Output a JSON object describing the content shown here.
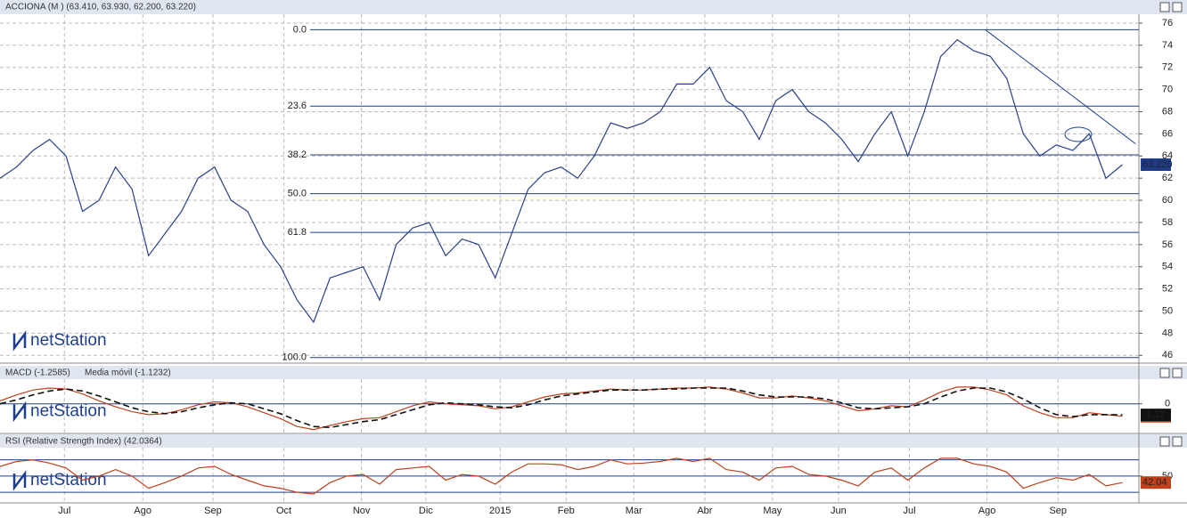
{
  "chart_data": [
    {
      "type": "line",
      "title": "ACCIONA (M ) (63.410, 63.930, 62.200, 63.220)",
      "watermark": "netStation",
      "x": [
        0,
        1,
        2,
        3,
        4,
        5,
        6,
        7,
        8,
        9,
        10,
        11,
        12,
        13,
        14,
        15,
        16,
        17,
        18,
        19,
        20,
        21,
        22,
        23,
        24,
        25,
        26,
        27,
        28,
        29,
        30,
        31,
        32,
        33,
        34,
        35,
        36,
        37,
        38,
        39,
        40,
        41,
        42,
        43,
        44,
        45,
        46,
        47,
        48,
        49,
        50,
        51,
        52,
        53,
        54,
        55,
        56,
        57,
        58,
        59,
        60,
        61,
        62,
        63,
        64,
        65,
        66,
        67,
        68
      ],
      "series": [
        {
          "name": "ACCIONA",
          "color": "#2a3f8f",
          "values": [
            62,
            63,
            64.5,
            65.5,
            64,
            59,
            60,
            63,
            61,
            55,
            57,
            59,
            62,
            63,
            60,
            59,
            56,
            54,
            51,
            49,
            53,
            53.5,
            54,
            51,
            56,
            57.5,
            58,
            55,
            56.5,
            56,
            53,
            57,
            61,
            62.5,
            63,
            62,
            64,
            67,
            66.5,
            67,
            68,
            70.5,
            70.5,
            72,
            69,
            68,
            65.5,
            69,
            70,
            68,
            67,
            65.5,
            63.5,
            66,
            68,
            64,
            68,
            73,
            74.5,
            73.5,
            73,
            71,
            66,
            64,
            65,
            64.5,
            66,
            62,
            63.22
          ]
        }
      ],
      "last_value_label": "63.220",
      "xlim": [
        0,
        69
      ],
      "ylim": [
        45.3,
        76.8
      ],
      "yticks": [
        46,
        48,
        50,
        52,
        54,
        56,
        58,
        60,
        62,
        64,
        66,
        68,
        70,
        72,
        74,
        76
      ],
      "grid": true,
      "fib_levels": [
        {
          "label": "0.0",
          "price": 75.4
        },
        {
          "label": "23.6",
          "price": 68.5
        },
        {
          "label": "38.2",
          "price": 64.1
        },
        {
          "label": "50.0",
          "price": 60.6
        },
        {
          "label": "61.8",
          "price": 57.1
        },
        {
          "label": "100.0",
          "price": 45.8
        }
      ],
      "trendline": {
        "x": [
          59.7,
          68.8
        ],
        "y": [
          75.4,
          65.1
        ]
      }
    },
    {
      "type": "line",
      "watermark": "netStation",
      "x": [
        0,
        1,
        2,
        3,
        4,
        5,
        6,
        7,
        8,
        9,
        10,
        11,
        12,
        13,
        14,
        15,
        16,
        17,
        18,
        19,
        20,
        21,
        22,
        23,
        24,
        25,
        26,
        27,
        28,
        29,
        30,
        31,
        32,
        33,
        34,
        35,
        36,
        37,
        38,
        39,
        40,
        41,
        42,
        43,
        44,
        45,
        46,
        47,
        48,
        49,
        50,
        51,
        52,
        53,
        54,
        55,
        56,
        57,
        58,
        59,
        60,
        61,
        62,
        63,
        64,
        65,
        66,
        67,
        68
      ],
      "series": [
        {
          "name": "MACD (-1.2585)",
          "color": "#c0401c",
          "values": [
            0.3,
            0.9,
            1.4,
            1.6,
            1.5,
            1.0,
            0.3,
            -0.3,
            -0.8,
            -1.1,
            -1.0,
            -0.6,
            -0.1,
            0.2,
            0.1,
            -0.3,
            -0.9,
            -1.5,
            -2.3,
            -2.6,
            -2.2,
            -1.8,
            -1.5,
            -1.4,
            -0.8,
            -0.2,
            0.2,
            0.0,
            -0.1,
            -0.2,
            -0.5,
            -0.3,
            0.2,
            0.7,
            1.0,
            1.1,
            1.3,
            1.5,
            1.4,
            1.4,
            1.5,
            1.6,
            1.6,
            1.7,
            1.5,
            1.1,
            0.6,
            0.6,
            0.8,
            0.6,
            0.3,
            -0.2,
            -0.7,
            -0.5,
            -0.2,
            -0.3,
            0.4,
            1.2,
            1.7,
            1.7,
            1.4,
            0.9,
            -0.2,
            -0.9,
            -1.4,
            -1.4,
            -0.9,
            -1.1,
            -1.26
          ]
        },
        {
          "name": "Media móvil (-1.1232)",
          "color": "#111111",
          "dashed": true,
          "values": [
            0.0,
            0.4,
            0.9,
            1.3,
            1.5,
            1.3,
            0.8,
            0.2,
            -0.4,
            -0.8,
            -1.0,
            -0.8,
            -0.4,
            -0.1,
            0.1,
            0.0,
            -0.5,
            -1.0,
            -1.7,
            -2.3,
            -2.4,
            -2.1,
            -1.8,
            -1.6,
            -1.1,
            -0.6,
            -0.1,
            0.1,
            0.0,
            -0.1,
            -0.3,
            -0.4,
            -0.1,
            0.4,
            0.8,
            1.0,
            1.2,
            1.4,
            1.4,
            1.4,
            1.5,
            1.5,
            1.6,
            1.6,
            1.6,
            1.3,
            0.9,
            0.7,
            0.7,
            0.7,
            0.5,
            0.1,
            -0.4,
            -0.5,
            -0.4,
            -0.3,
            0.0,
            0.7,
            1.3,
            1.6,
            1.6,
            1.2,
            0.5,
            -0.4,
            -1.1,
            -1.3,
            -1.1,
            -1.1,
            -1.12
          ]
        }
      ],
      "xlim": [
        0,
        69
      ],
      "ylim": [
        -3,
        2.5
      ],
      "yticks": [
        0
      ]
    },
    {
      "type": "line",
      "title": "RSI (Relative Strength Index) (42.0364)",
      "watermark": "netStation",
      "x": [
        0,
        1,
        2,
        3,
        4,
        5,
        6,
        7,
        8,
        9,
        10,
        11,
        12,
        13,
        14,
        15,
        16,
        17,
        18,
        19,
        20,
        21,
        22,
        23,
        24,
        25,
        26,
        27,
        28,
        29,
        30,
        31,
        32,
        33,
        34,
        35,
        36,
        37,
        38,
        39,
        40,
        41,
        42,
        43,
        44,
        45,
        46,
        47,
        48,
        49,
        50,
        51,
        52,
        53,
        54,
        55,
        56,
        57,
        58,
        59,
        60,
        61,
        62,
        63,
        64,
        65,
        66,
        67,
        68
      ],
      "series": [
        {
          "name": "RSI",
          "color": "#c0401c",
          "values": [
            62,
            68,
            70,
            66,
            60,
            45,
            50,
            58,
            50,
            35,
            42,
            50,
            60,
            62,
            52,
            45,
            38,
            35,
            30,
            28,
            42,
            50,
            52,
            40,
            58,
            60,
            62,
            45,
            52,
            50,
            40,
            55,
            65,
            65,
            64,
            58,
            62,
            70,
            65,
            66,
            68,
            72,
            68,
            72,
            58,
            55,
            45,
            60,
            62,
            52,
            50,
            45,
            38,
            55,
            60,
            45,
            60,
            72,
            72,
            65,
            62,
            55,
            35,
            42,
            48,
            45,
            52,
            38,
            42.04
          ]
        }
      ],
      "xlim": [
        0,
        69
      ],
      "ylim": [
        17,
        85
      ],
      "yticks": [
        50
      ],
      "bands": [
        30,
        70
      ],
      "xticks": [
        {
          "value": 3.9,
          "label": "Jul"
        },
        {
          "value": 8.65,
          "label": "Ago"
        },
        {
          "value": 12.9,
          "label": "Sep"
        },
        {
          "value": 17.2,
          "label": "Oct"
        },
        {
          "value": 21.9,
          "label": "Nov"
        },
        {
          "value": 25.8,
          "label": "Dic"
        },
        {
          "value": 30.3,
          "label": "2015"
        },
        {
          "value": 34.3,
          "label": "Feb"
        },
        {
          "value": 38.4,
          "label": "Mar"
        },
        {
          "value": 42.7,
          "label": "Abr"
        },
        {
          "value": 46.8,
          "label": "May"
        },
        {
          "value": 50.8,
          "label": "Jun"
        },
        {
          "value": 55.1,
          "label": "Jul"
        },
        {
          "value": 59.8,
          "label": "Ago"
        },
        {
          "value": 64.1,
          "label": "Sep"
        }
      ]
    }
  ]
}
